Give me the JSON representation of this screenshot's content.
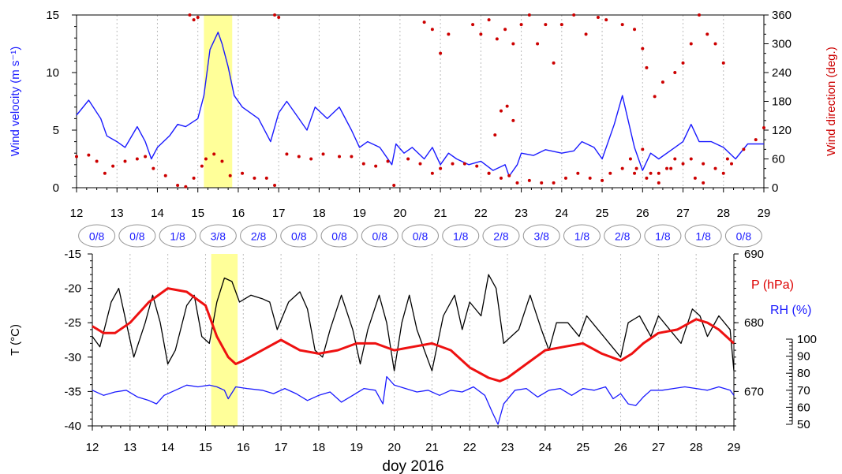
{
  "chart_data": [
    {
      "type": "line",
      "id": "wind",
      "xlim": [
        12,
        29
      ],
      "x_ticks": [
        12,
        13,
        14,
        15,
        16,
        17,
        18,
        19,
        20,
        21,
        22,
        23,
        24,
        25,
        26,
        27,
        28,
        29
      ],
      "y_left": {
        "label": "Wind velocity (m s⁻¹)",
        "lim": [
          0,
          15
        ],
        "ticks": [
          0,
          5,
          10,
          15
        ],
        "color": "#1a1aff"
      },
      "y_right": {
        "label": "Wind direction (deg.)",
        "lim": [
          0,
          360
        ],
        "ticks": [
          0,
          60,
          120,
          180,
          240,
          300,
          360
        ],
        "color": "#cc0000"
      },
      "highlight": {
        "x": [
          15.15,
          15.85
        ],
        "color": "#ffff99"
      },
      "series": [
        {
          "axis": "left",
          "style": "line",
          "color": "#1a1aff",
          "x": [
            12.0,
            12.3,
            12.6,
            12.75,
            13.0,
            13.2,
            13.5,
            13.7,
            13.85,
            14.0,
            14.3,
            14.5,
            14.7,
            15.0,
            15.15,
            15.3,
            15.5,
            15.6,
            15.75,
            15.9,
            16.1,
            16.5,
            16.8,
            17.0,
            17.2,
            17.5,
            17.7,
            17.9,
            18.2,
            18.5,
            18.8,
            19.0,
            19.2,
            19.5,
            19.8,
            19.9,
            20.1,
            20.3,
            20.6,
            20.8,
            21.0,
            21.2,
            21.4,
            21.7,
            22.0,
            22.3,
            22.6,
            22.7,
            22.9,
            23.0,
            23.3,
            23.6,
            24.0,
            24.3,
            24.5,
            24.8,
            25.0,
            25.3,
            25.5,
            25.8,
            26.0,
            26.2,
            26.4,
            26.8,
            27.0,
            27.2,
            27.4,
            27.7,
            28.0,
            28.3,
            28.6,
            29.0
          ],
          "y": [
            6.3,
            7.6,
            6.0,
            4.5,
            4.0,
            3.5,
            5.3,
            4.0,
            2.5,
            3.5,
            4.5,
            5.5,
            5.3,
            6.0,
            8.0,
            12.0,
            13.5,
            12.5,
            10.5,
            8.0,
            7.0,
            6.0,
            4.0,
            6.5,
            7.5,
            6.0,
            5.0,
            7.0,
            6.0,
            7.0,
            5.0,
            3.5,
            4.0,
            3.5,
            2.0,
            3.8,
            3.0,
            3.5,
            2.5,
            3.5,
            2.0,
            3.0,
            2.5,
            2.0,
            2.3,
            1.5,
            2.0,
            1.0,
            2.0,
            3.0,
            2.8,
            3.3,
            3.0,
            3.2,
            4.0,
            3.5,
            2.5,
            5.5,
            8.0,
            3.5,
            1.5,
            3.0,
            2.5,
            3.5,
            4.0,
            5.5,
            4.0,
            4.0,
            3.5,
            2.5,
            3.8,
            3.8
          ]
        },
        {
          "axis": "right",
          "style": "dots",
          "color": "#cc0000",
          "x": [
            12.0,
            12.3,
            12.5,
            12.7,
            12.9,
            13.2,
            13.5,
            13.7,
            13.9,
            14.2,
            14.5,
            14.7,
            14.9,
            15.1,
            15.2,
            15.4,
            15.6,
            15.8,
            16.1,
            16.4,
            16.7,
            16.9,
            17.2,
            17.5,
            17.8,
            18.1,
            18.5,
            18.8,
            19.1,
            19.4,
            19.7,
            19.85,
            20.2,
            20.5,
            20.8,
            21.0,
            21.3,
            21.6,
            21.9,
            22.2,
            22.5,
            22.7,
            22.9,
            23.2,
            23.5,
            23.8,
            24.1,
            24.4,
            24.7,
            25.0,
            25.2,
            25.5,
            25.8,
            26.1,
            26.4,
            26.7,
            27.0,
            27.2,
            27.5,
            27.8,
            28.0,
            28.2,
            28.5,
            28.8,
            29.0
          ],
          "y": [
            65,
            68,
            55,
            30,
            45,
            55,
            60,
            65,
            40,
            25,
            5,
            2,
            20,
            45,
            60,
            70,
            55,
            25,
            30,
            20,
            20,
            5,
            70,
            65,
            60,
            70,
            65,
            65,
            50,
            45,
            55,
            5,
            60,
            50,
            30,
            40,
            50,
            50,
            45,
            30,
            20,
            25,
            10,
            15,
            10,
            10,
            20,
            30,
            20,
            15,
            30,
            40,
            30,
            20,
            30,
            40,
            50,
            60,
            50,
            40,
            30,
            50,
            80,
            100,
            125
          ]
        },
        {
          "axis": "right",
          "style": "dots",
          "color": "#cc0000",
          "x": [
            14.8,
            14.9,
            15.0,
            16.9,
            17.0,
            20.6,
            20.8,
            21.0,
            21.2,
            21.8,
            22.0,
            22.2,
            22.4,
            22.6,
            22.8,
            23.0,
            23.2,
            23.4,
            23.6,
            23.8,
            24.0,
            24.3,
            24.6,
            24.9,
            25.1,
            25.5,
            25.8,
            26.0,
            26.1,
            26.3,
            26.5,
            26.8,
            27.0,
            27.2,
            27.4,
            27.6,
            27.8,
            28.0
          ],
          "y": [
            360,
            350,
            355,
            360,
            355,
            345,
            330,
            280,
            320,
            340,
            320,
            350,
            310,
            330,
            300,
            340,
            360,
            300,
            340,
            260,
            340,
            360,
            320,
            355,
            350,
            340,
            330,
            290,
            250,
            190,
            220,
            240,
            260,
            300,
            360,
            320,
            300,
            260
          ]
        },
        {
          "axis": "right",
          "style": "dots",
          "color": "#cc0000",
          "x": [
            22.2,
            22.35,
            22.5,
            22.65,
            22.8,
            25.7,
            25.85,
            26.0,
            26.2,
            26.4,
            26.6,
            26.8,
            27.3,
            27.5,
            28.1
          ],
          "y": [
            30,
            110,
            160,
            170,
            140,
            60,
            40,
            80,
            30,
            10,
            40,
            60,
            20,
            10,
            60
          ]
        }
      ]
    },
    {
      "type": "table",
      "id": "cloud_cover",
      "labels": [
        "0/8",
        "0/8",
        "1/8",
        "3/8",
        "2/8",
        "0/8",
        "0/8",
        "0/8",
        "0/8",
        "1/8",
        "2/8",
        "3/8",
        "1/8",
        "2/8",
        "1/8",
        "1/8",
        "0/8"
      ],
      "centers": [
        12.5,
        13.5,
        14.5,
        15.5,
        16.5,
        17.5,
        18.5,
        19.5,
        20.5,
        21.5,
        22.5,
        23.5,
        24.5,
        25.5,
        26.5,
        27.5,
        28.5
      ]
    },
    {
      "type": "line",
      "id": "thermo",
      "xlim": [
        12,
        29
      ],
      "x_ticks": [
        12,
        13,
        14,
        15,
        16,
        17,
        18,
        19,
        20,
        21,
        22,
        23,
        24,
        25,
        26,
        27,
        28,
        29
      ],
      "xlabel": "doy 2016",
      "y_left": {
        "label": "T (°C)",
        "lim": [
          -40,
          -15
        ],
        "ticks": [
          -40,
          -35,
          -30,
          -25,
          -20,
          -15
        ]
      },
      "y_right": {
        "label": "P (hPa)",
        "lim": [
          665,
          690
        ],
        "ticks": [
          670,
          680,
          690
        ],
        "color": "#dd0000"
      },
      "rh_scale": {
        "label": "RH (%)",
        "lim": [
          50,
          100
        ],
        "ticks": [
          50,
          60,
          70,
          80,
          90,
          100
        ],
        "color": "#1a1aff"
      },
      "highlight": {
        "x": [
          15.15,
          15.85
        ],
        "color": "#ffff99"
      },
      "series": [
        {
          "axis": "left",
          "color": "#000000",
          "x": [
            12.0,
            12.2,
            12.5,
            12.7,
            12.9,
            13.1,
            13.4,
            13.6,
            13.8,
            14.0,
            14.2,
            14.5,
            14.7,
            14.9,
            15.1,
            15.3,
            15.5,
            15.7,
            15.9,
            16.2,
            16.5,
            16.7,
            16.9,
            17.2,
            17.5,
            17.7,
            17.9,
            18.1,
            18.3,
            18.6,
            18.9,
            19.1,
            19.3,
            19.6,
            19.8,
            20.0,
            20.2,
            20.4,
            20.6,
            20.8,
            21.0,
            21.3,
            21.6,
            21.8,
            22.0,
            22.3,
            22.5,
            22.7,
            22.9,
            23.1,
            23.3,
            23.6,
            23.9,
            24.1,
            24.3,
            24.6,
            24.9,
            25.1,
            25.4,
            25.7,
            26.0,
            26.2,
            26.5,
            26.8,
            27.0,
            27.3,
            27.6,
            27.9,
            28.1,
            28.3,
            28.6,
            28.9,
            29.0
          ],
          "y": [
            -27,
            -28.5,
            -22,
            -20,
            -25,
            -30,
            -25,
            -21,
            -25,
            -31,
            -29,
            -22.5,
            -21,
            -27,
            -28,
            -22,
            -18.5,
            -19,
            -22,
            -21,
            -21.5,
            -22,
            -26,
            -22,
            -20.5,
            -23,
            -29,
            -30,
            -26,
            -21,
            -26,
            -31,
            -26,
            -21,
            -25,
            -32,
            -25,
            -21,
            -26,
            -29,
            -32,
            -24,
            -21,
            -26,
            -22,
            -24,
            -18,
            -20,
            -28,
            -27,
            -26,
            -21,
            -26,
            -29,
            -25,
            -25,
            -27,
            -24,
            -26,
            -28,
            -30,
            -25,
            -24,
            -27,
            -24,
            -26,
            -28,
            -23,
            -24,
            -27,
            -24,
            -26,
            -32
          ]
        },
        {
          "axis": "right",
          "color": "#ee1111",
          "x": [
            12.0,
            12.3,
            12.6,
            13.0,
            13.5,
            14.0,
            14.5,
            15.0,
            15.3,
            15.6,
            15.8,
            16.0,
            16.5,
            17.0,
            17.5,
            18.0,
            18.5,
            19.0,
            19.5,
            20.0,
            20.5,
            21.0,
            21.5,
            22.0,
            22.5,
            22.8,
            23.0,
            23.5,
            24.0,
            24.5,
            25.0,
            25.5,
            26.0,
            26.3,
            26.6,
            27.0,
            27.5,
            28.0,
            28.3,
            28.6,
            29.0
          ],
          "y": [
            679.5,
            678.5,
            678.5,
            680,
            683,
            685,
            684.5,
            682.5,
            678,
            675,
            674,
            674.5,
            676,
            677.5,
            676,
            675.5,
            676,
            677,
            677,
            676,
            676.5,
            677,
            676,
            673.5,
            672,
            671.5,
            672,
            674,
            676,
            676.5,
            677,
            675.5,
            674.5,
            675.5,
            677,
            678.5,
            679,
            680.5,
            680,
            679,
            677
          ]
        },
        {
          "axis": "rh",
          "color": "#1a1aff",
          "x": [
            12.0,
            12.3,
            12.6,
            12.9,
            13.2,
            13.5,
            13.7,
            13.9,
            14.2,
            14.5,
            14.8,
            15.1,
            15.3,
            15.5,
            15.6,
            15.8,
            16.1,
            16.5,
            16.8,
            17.1,
            17.4,
            17.7,
            18.0,
            18.3,
            18.6,
            18.9,
            19.2,
            19.5,
            19.7,
            19.8,
            20.0,
            20.3,
            20.6,
            20.9,
            21.2,
            21.5,
            21.8,
            22.1,
            22.4,
            22.6,
            22.75,
            22.9,
            23.2,
            23.5,
            23.8,
            24.1,
            24.4,
            24.7,
            25.0,
            25.3,
            25.6,
            25.8,
            26.0,
            26.2,
            26.4,
            26.6,
            26.8,
            27.1,
            27.4,
            27.7,
            28.0,
            28.3,
            28.6,
            28.9,
            29.0
          ],
          "y": [
            70,
            67,
            69,
            70,
            66,
            64,
            62,
            67,
            70,
            73,
            72,
            73,
            72,
            70,
            65,
            72,
            71,
            70,
            68,
            71,
            68,
            64,
            67,
            69,
            63,
            67,
            71,
            70,
            62,
            78,
            73,
            71,
            69,
            70,
            67,
            70,
            69,
            72,
            67,
            57,
            50,
            62,
            70,
            71,
            66,
            70,
            71,
            67,
            71,
            70,
            72,
            65,
            68,
            62,
            61,
            66,
            70,
            70,
            71,
            72,
            71,
            70,
            72,
            70,
            67
          ]
        }
      ]
    }
  ]
}
